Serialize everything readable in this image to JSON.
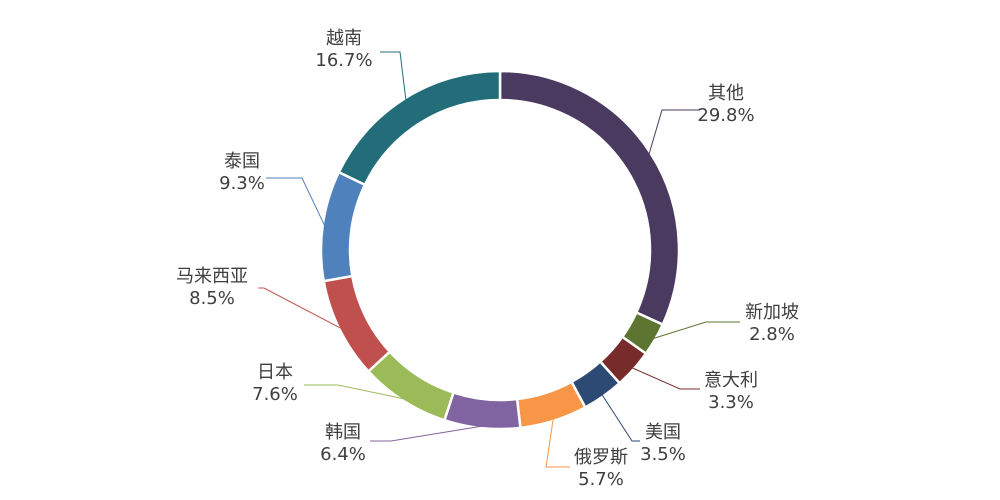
{
  "chart_data": {
    "type": "pie",
    "variant": "donut",
    "start_angle_deg": 0,
    "direction": "clockwise",
    "labels": [
      "其他",
      "新加坡",
      "意大利",
      "美国",
      "俄罗斯",
      "韩国",
      "日本",
      "马来西亚",
      "泰国",
      "越南"
    ],
    "values": [
      29.8,
      2.8,
      3.3,
      3.5,
      5.7,
      6.4,
      7.6,
      8.5,
      9.3,
      16.7
    ],
    "value_labels": [
      "29.8%",
      "2.8%",
      "3.3%",
      "3.5%",
      "5.7%",
      "6.4%",
      "7.6%",
      "8.5%",
      "9.3%",
      "16.7%"
    ],
    "colors": [
      "#4A3A60",
      "#5E7531",
      "#782B2B",
      "#2C4A74",
      "#F79646",
      "#8064A2",
      "#9BBB59",
      "#C0504D",
      "#4F81BD",
      "#236D7B"
    ],
    "legend": "none",
    "data_labels": "outside-with-leader-lines"
  }
}
